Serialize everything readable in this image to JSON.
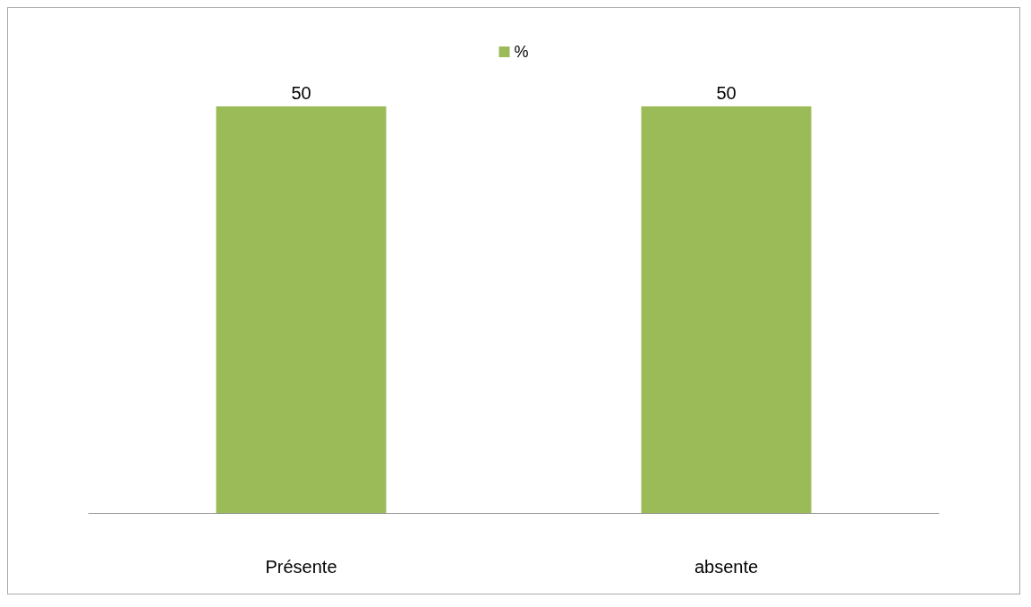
{
  "chart_data": {
    "type": "bar",
    "categories": [
      "Présente",
      "absente"
    ],
    "series": [
      {
        "name": "%",
        "color": "#9bbb59",
        "values": [
          50,
          50
        ]
      }
    ],
    "data_labels": true,
    "legend": "top"
  }
}
